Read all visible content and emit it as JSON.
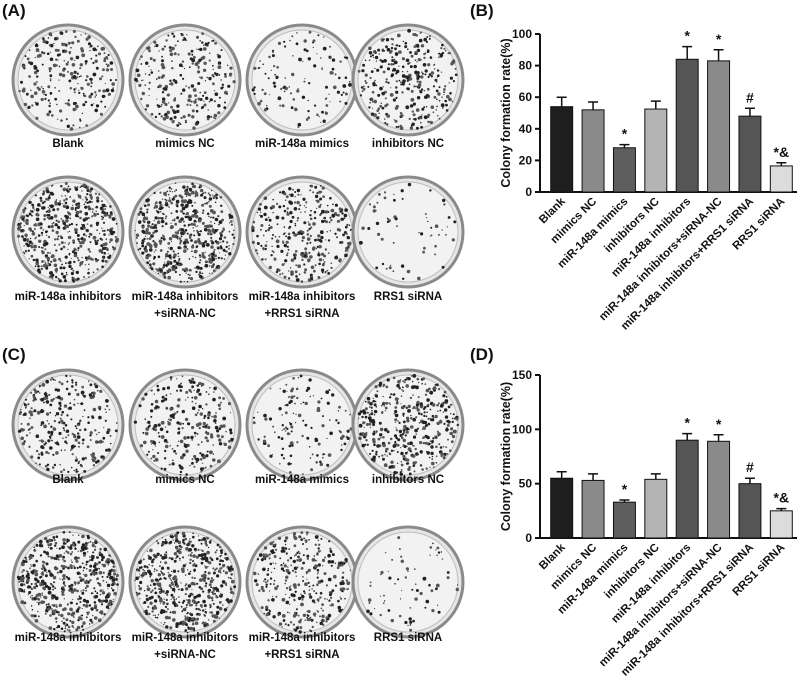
{
  "panel_labels": [
    "(A)",
    "(B)",
    "(C)",
    "(D)"
  ],
  "plates": [
    {
      "labels": [
        [
          "Blank"
        ],
        [
          "mimics NC"
        ],
        [
          "miR-148a mimics"
        ],
        [
          "inhibitors NC"
        ],
        [
          "miR-148a inhibitors"
        ],
        [
          "miR-148a inhibitors",
          "+siRNA-NC"
        ],
        [
          "miR-148a inhibitors",
          "+RRS1 siRNA"
        ],
        [
          "RRS1 siRNA"
        ]
      ]
    },
    {
      "labels": [
        [
          "Blank"
        ],
        [
          "mimics NC"
        ],
        [
          "miR-148a mimics"
        ],
        [
          "inhibitors NC"
        ],
        [
          "miR-148a inhibitors"
        ],
        [
          "miR-148a inhibitors",
          "+siRNA-NC"
        ],
        [
          "miR-148a inhibitors",
          "+RRS1 siRNA"
        ],
        [
          "RRS1 siRNA"
        ]
      ]
    }
  ],
  "chart_data": [
    {
      "type": "bar",
      "y_label": "Colony formation rate(%)",
      "categories": [
        "Blank",
        "mimics NC",
        "miR-148a mimics",
        "inhibitors NC",
        "miR-148a inhibitors",
        "miR-148a inhibitors+siRNA-NC",
        "miR-148a inhibitors+RRS1 siRNA",
        "RRS1 siRNA"
      ],
      "values": [
        54,
        52,
        28,
        52.5,
        84,
        83,
        48,
        16.5
      ],
      "errors": [
        6,
        5,
        2,
        5,
        8,
        7,
        5,
        2
      ],
      "annotations": [
        null,
        null,
        "*",
        null,
        "*",
        "*",
        "#",
        "*&"
      ],
      "colors": [
        "#1e1e1e",
        "#8a8a8a",
        "#5e5e5e",
        "#b4b4b4",
        "#555555",
        "#8a8a8a",
        "#555555",
        "#dcdcdc"
      ],
      "ylim": [
        0,
        100
      ],
      "yticks": [
        0,
        20,
        40,
        60,
        80,
        100
      ]
    },
    {
      "type": "bar",
      "y_label": "Colony formation rate(%)",
      "categories": [
        "Blank",
        "mimics NC",
        "miR-148a mimics",
        "inhibitors NC",
        "miR-148a inhibitors",
        "miR-148a inhibitors+siRNA-NC",
        "miR-148a inhibitors+RRS1 siRNA",
        "RRS1 siRNA"
      ],
      "values": [
        55,
        53,
        33,
        54,
        90,
        89,
        50,
        25
      ],
      "errors": [
        6,
        6,
        2,
        5,
        6,
        6,
        5,
        2
      ],
      "annotations": [
        null,
        null,
        "*",
        null,
        "*",
        "*",
        "#",
        "*&"
      ],
      "colors": [
        "#1e1e1e",
        "#8a8a8a",
        "#5e5e5e",
        "#b4b4b4",
        "#555555",
        "#8a8a8a",
        "#555555",
        "#dcdcdc"
      ],
      "ylim": [
        0,
        150
      ],
      "yticks": [
        0,
        50,
        100,
        150
      ]
    }
  ]
}
